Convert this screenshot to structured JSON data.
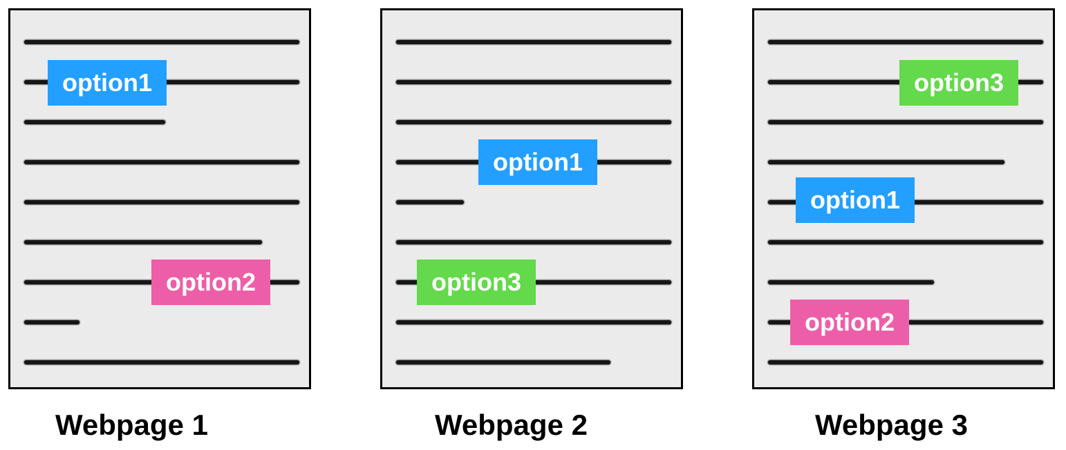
{
  "colors": {
    "option1": "#239fff",
    "option2": "#ec5fa8",
    "option3": "#63d94b"
  },
  "pages": [
    {
      "caption": "Webpage 1",
      "options": [
        {
          "label": "option1",
          "color_key": "option1"
        },
        {
          "label": "option2",
          "color_key": "option2"
        }
      ]
    },
    {
      "caption": "Webpage 2",
      "options": [
        {
          "label": "option1",
          "color_key": "option1"
        },
        {
          "label": "option3",
          "color_key": "option3"
        }
      ]
    },
    {
      "caption": "Webpage 3",
      "options": [
        {
          "label": "option3",
          "color_key": "option3"
        },
        {
          "label": "option1",
          "color_key": "option1"
        },
        {
          "label": "option2",
          "color_key": "option2"
        }
      ]
    }
  ]
}
